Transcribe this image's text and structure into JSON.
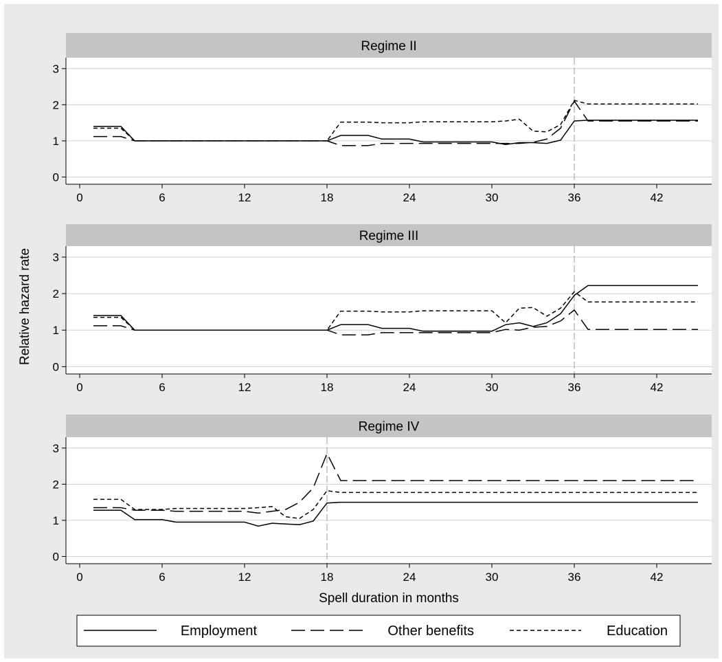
{
  "chart_data": {
    "type": "line",
    "ylabel": "Relative hazard rate",
    "xlabel": "Spell duration in months",
    "xlim": [
      -1,
      46
    ],
    "ylim": [
      -0.2,
      3.3
    ],
    "xticks": [
      "0",
      "6",
      "12",
      "18",
      "24",
      "30",
      "36",
      "42"
    ],
    "yticks": [
      "0",
      "1",
      "2",
      "3"
    ],
    "grid": true,
    "legend_position": "bottom",
    "legend": [
      "Employment",
      "Other benefits",
      "Education"
    ],
    "line_styles": {
      "Employment": "solid",
      "Other benefits": "long-dash",
      "Education": "short-dash"
    },
    "panels": [
      {
        "title": "Regime II",
        "vline": 36,
        "x": [
          1,
          2,
          3,
          4,
          5,
          6,
          7,
          8,
          9,
          10,
          11,
          12,
          13,
          14,
          15,
          16,
          17,
          18,
          19,
          20,
          21,
          22,
          23,
          24,
          25,
          26,
          27,
          28,
          29,
          30,
          31,
          32,
          33,
          34,
          35,
          36,
          37,
          38,
          39,
          40,
          41,
          42,
          43,
          44,
          45
        ],
        "series": [
          {
            "name": "Employment",
            "values": [
              1.4,
              1.4,
              1.4,
              1.0,
              1.0,
              1.0,
              1.0,
              1.0,
              1.0,
              1.0,
              1.0,
              1.0,
              1.0,
              1.0,
              1.0,
              1.0,
              1.0,
              1.0,
              1.15,
              1.15,
              1.15,
              1.05,
              1.05,
              1.05,
              0.97,
              0.97,
              0.97,
              0.97,
              0.97,
              0.97,
              0.9,
              0.95,
              0.95,
              0.93,
              1.02,
              1.55,
              1.57,
              1.57,
              1.57,
              1.57,
              1.57,
              1.57,
              1.57,
              1.57,
              1.57
            ]
          },
          {
            "name": "Other benefits",
            "values": [
              1.12,
              1.12,
              1.12,
              1.0,
              1.0,
              1.0,
              1.0,
              1.0,
              1.0,
              1.0,
              1.0,
              1.0,
              1.0,
              1.0,
              1.0,
              1.0,
              1.0,
              1.0,
              0.87,
              0.87,
              0.87,
              0.93,
              0.93,
              0.93,
              0.93,
              0.93,
              0.93,
              0.93,
              0.93,
              0.93,
              0.93,
              0.93,
              0.96,
              1.05,
              1.35,
              2.1,
              1.55,
              1.55,
              1.55,
              1.55,
              1.55,
              1.55,
              1.55,
              1.55,
              1.55
            ]
          },
          {
            "name": "Education",
            "values": [
              1.35,
              1.35,
              1.35,
              1.0,
              1.0,
              1.0,
              1.0,
              1.0,
              1.0,
              1.0,
              1.0,
              1.0,
              1.0,
              1.0,
              1.0,
              1.0,
              1.0,
              1.0,
              1.52,
              1.52,
              1.52,
              1.5,
              1.5,
              1.5,
              1.53,
              1.53,
              1.53,
              1.53,
              1.53,
              1.53,
              1.55,
              1.6,
              1.27,
              1.25,
              1.45,
              2.12,
              2.02,
              2.02,
              2.02,
              2.02,
              2.02,
              2.02,
              2.02,
              2.02,
              2.02
            ]
          }
        ]
      },
      {
        "title": "Regime III",
        "vline": 36,
        "x": [
          1,
          2,
          3,
          4,
          5,
          6,
          7,
          8,
          9,
          10,
          11,
          12,
          13,
          14,
          15,
          16,
          17,
          18,
          19,
          20,
          21,
          22,
          23,
          24,
          25,
          26,
          27,
          28,
          29,
          30,
          31,
          32,
          33,
          34,
          35,
          36,
          37,
          38,
          39,
          40,
          41,
          42,
          43,
          44,
          45
        ],
        "series": [
          {
            "name": "Employment",
            "values": [
              1.4,
              1.4,
              1.4,
              1.0,
              1.0,
              1.0,
              1.0,
              1.0,
              1.0,
              1.0,
              1.0,
              1.0,
              1.0,
              1.0,
              1.0,
              1.0,
              1.0,
              1.0,
              1.15,
              1.15,
              1.15,
              1.05,
              1.05,
              1.05,
              0.97,
              0.97,
              0.97,
              0.97,
              0.97,
              0.97,
              1.15,
              1.2,
              1.1,
              1.2,
              1.45,
              1.95,
              2.22,
              2.22,
              2.22,
              2.22,
              2.22,
              2.22,
              2.22,
              2.22,
              2.22
            ]
          },
          {
            "name": "Other benefits",
            "values": [
              1.12,
              1.12,
              1.12,
              1.0,
              1.0,
              1.0,
              1.0,
              1.0,
              1.0,
              1.0,
              1.0,
              1.0,
              1.0,
              1.0,
              1.0,
              1.0,
              1.0,
              1.0,
              0.87,
              0.87,
              0.87,
              0.93,
              0.93,
              0.93,
              0.93,
              0.93,
              0.93,
              0.93,
              0.93,
              0.93,
              1.02,
              1.0,
              1.08,
              1.1,
              1.25,
              1.55,
              1.02,
              1.02,
              1.02,
              1.02,
              1.02,
              1.02,
              1.02,
              1.02,
              1.02
            ]
          },
          {
            "name": "Education",
            "values": [
              1.35,
              1.35,
              1.35,
              1.0,
              1.0,
              1.0,
              1.0,
              1.0,
              1.0,
              1.0,
              1.0,
              1.0,
              1.0,
              1.0,
              1.0,
              1.0,
              1.0,
              1.0,
              1.52,
              1.52,
              1.52,
              1.5,
              1.5,
              1.5,
              1.53,
              1.53,
              1.53,
              1.53,
              1.53,
              1.53,
              1.2,
              1.6,
              1.62,
              1.38,
              1.6,
              2.05,
              1.77,
              1.77,
              1.77,
              1.77,
              1.77,
              1.77,
              1.77,
              1.77,
              1.77
            ]
          }
        ]
      },
      {
        "title": "Regime IV",
        "vline": 18,
        "x": [
          1,
          2,
          3,
          4,
          5,
          6,
          7,
          8,
          9,
          10,
          11,
          12,
          13,
          14,
          15,
          16,
          17,
          18,
          19,
          20,
          21,
          22,
          23,
          24,
          25,
          26,
          27,
          28,
          29,
          30,
          31,
          32,
          33,
          34,
          35,
          36,
          37,
          38,
          39,
          40,
          41,
          42,
          43,
          44,
          45
        ],
        "series": [
          {
            "name": "Employment",
            "values": [
              1.28,
              1.28,
              1.28,
              1.02,
              1.02,
              1.02,
              0.95,
              0.95,
              0.95,
              0.95,
              0.95,
              0.95,
              0.84,
              0.92,
              0.9,
              0.88,
              0.98,
              1.48,
              1.5,
              1.5,
              1.5,
              1.5,
              1.5,
              1.5,
              1.5,
              1.5,
              1.5,
              1.5,
              1.5,
              1.5,
              1.5,
              1.5,
              1.5,
              1.5,
              1.5,
              1.5,
              1.5,
              1.5,
              1.5,
              1.5,
              1.5,
              1.5,
              1.5,
              1.5,
              1.5
            ]
          },
          {
            "name": "Other benefits",
            "values": [
              1.35,
              1.35,
              1.35,
              1.28,
              1.28,
              1.28,
              1.25,
              1.25,
              1.25,
              1.25,
              1.25,
              1.25,
              1.2,
              1.25,
              1.3,
              1.5,
              1.9,
              2.85,
              2.1,
              2.1,
              2.1,
              2.1,
              2.1,
              2.1,
              2.1,
              2.1,
              2.1,
              2.1,
              2.1,
              2.1,
              2.1,
              2.1,
              2.1,
              2.1,
              2.1,
              2.1,
              2.1,
              2.1,
              2.1,
              2.1,
              2.1,
              2.1,
              2.1,
              2.1,
              2.1
            ]
          },
          {
            "name": "Education",
            "values": [
              1.58,
              1.58,
              1.58,
              1.3,
              1.3,
              1.3,
              1.33,
              1.33,
              1.33,
              1.33,
              1.33,
              1.33,
              1.35,
              1.38,
              1.1,
              1.05,
              1.3,
              1.82,
              1.77,
              1.77,
              1.77,
              1.77,
              1.77,
              1.77,
              1.77,
              1.77,
              1.77,
              1.77,
              1.77,
              1.77,
              1.77,
              1.77,
              1.77,
              1.77,
              1.77,
              1.77,
              1.77,
              1.77,
              1.77,
              1.77,
              1.77,
              1.77,
              1.77,
              1.77,
              1.77
            ]
          }
        ]
      }
    ]
  }
}
